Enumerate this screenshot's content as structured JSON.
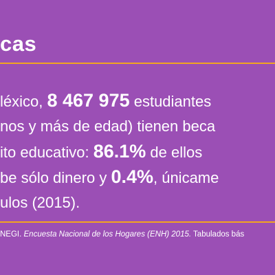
{
  "header": {
    "title": "cas"
  },
  "colors": {
    "background": "#9B4FB5",
    "accent_rule": "#F2A51F",
    "text": "#FFFFFF"
  },
  "body": {
    "line1": {
      "pre": "léxico, ",
      "bold": "8 467 975",
      "post": " estudiantes"
    },
    "line2": {
      "text": "nos y más de edad) tienen beca"
    },
    "line3": {
      "pre": "ito educativo: ",
      "bold": "86.1%",
      "post": " de ellos"
    },
    "line4": {
      "pre": "be sólo dinero y ",
      "bold": "0.4%",
      "post": ", únicame"
    },
    "line5": {
      "text": "ulos (2015)."
    }
  },
  "source": {
    "prefix": "NEGI. ",
    "italic": "Encuesta Nacional de los Hogares (ENH) 2015.",
    "suffix": " Tabulados bás"
  }
}
